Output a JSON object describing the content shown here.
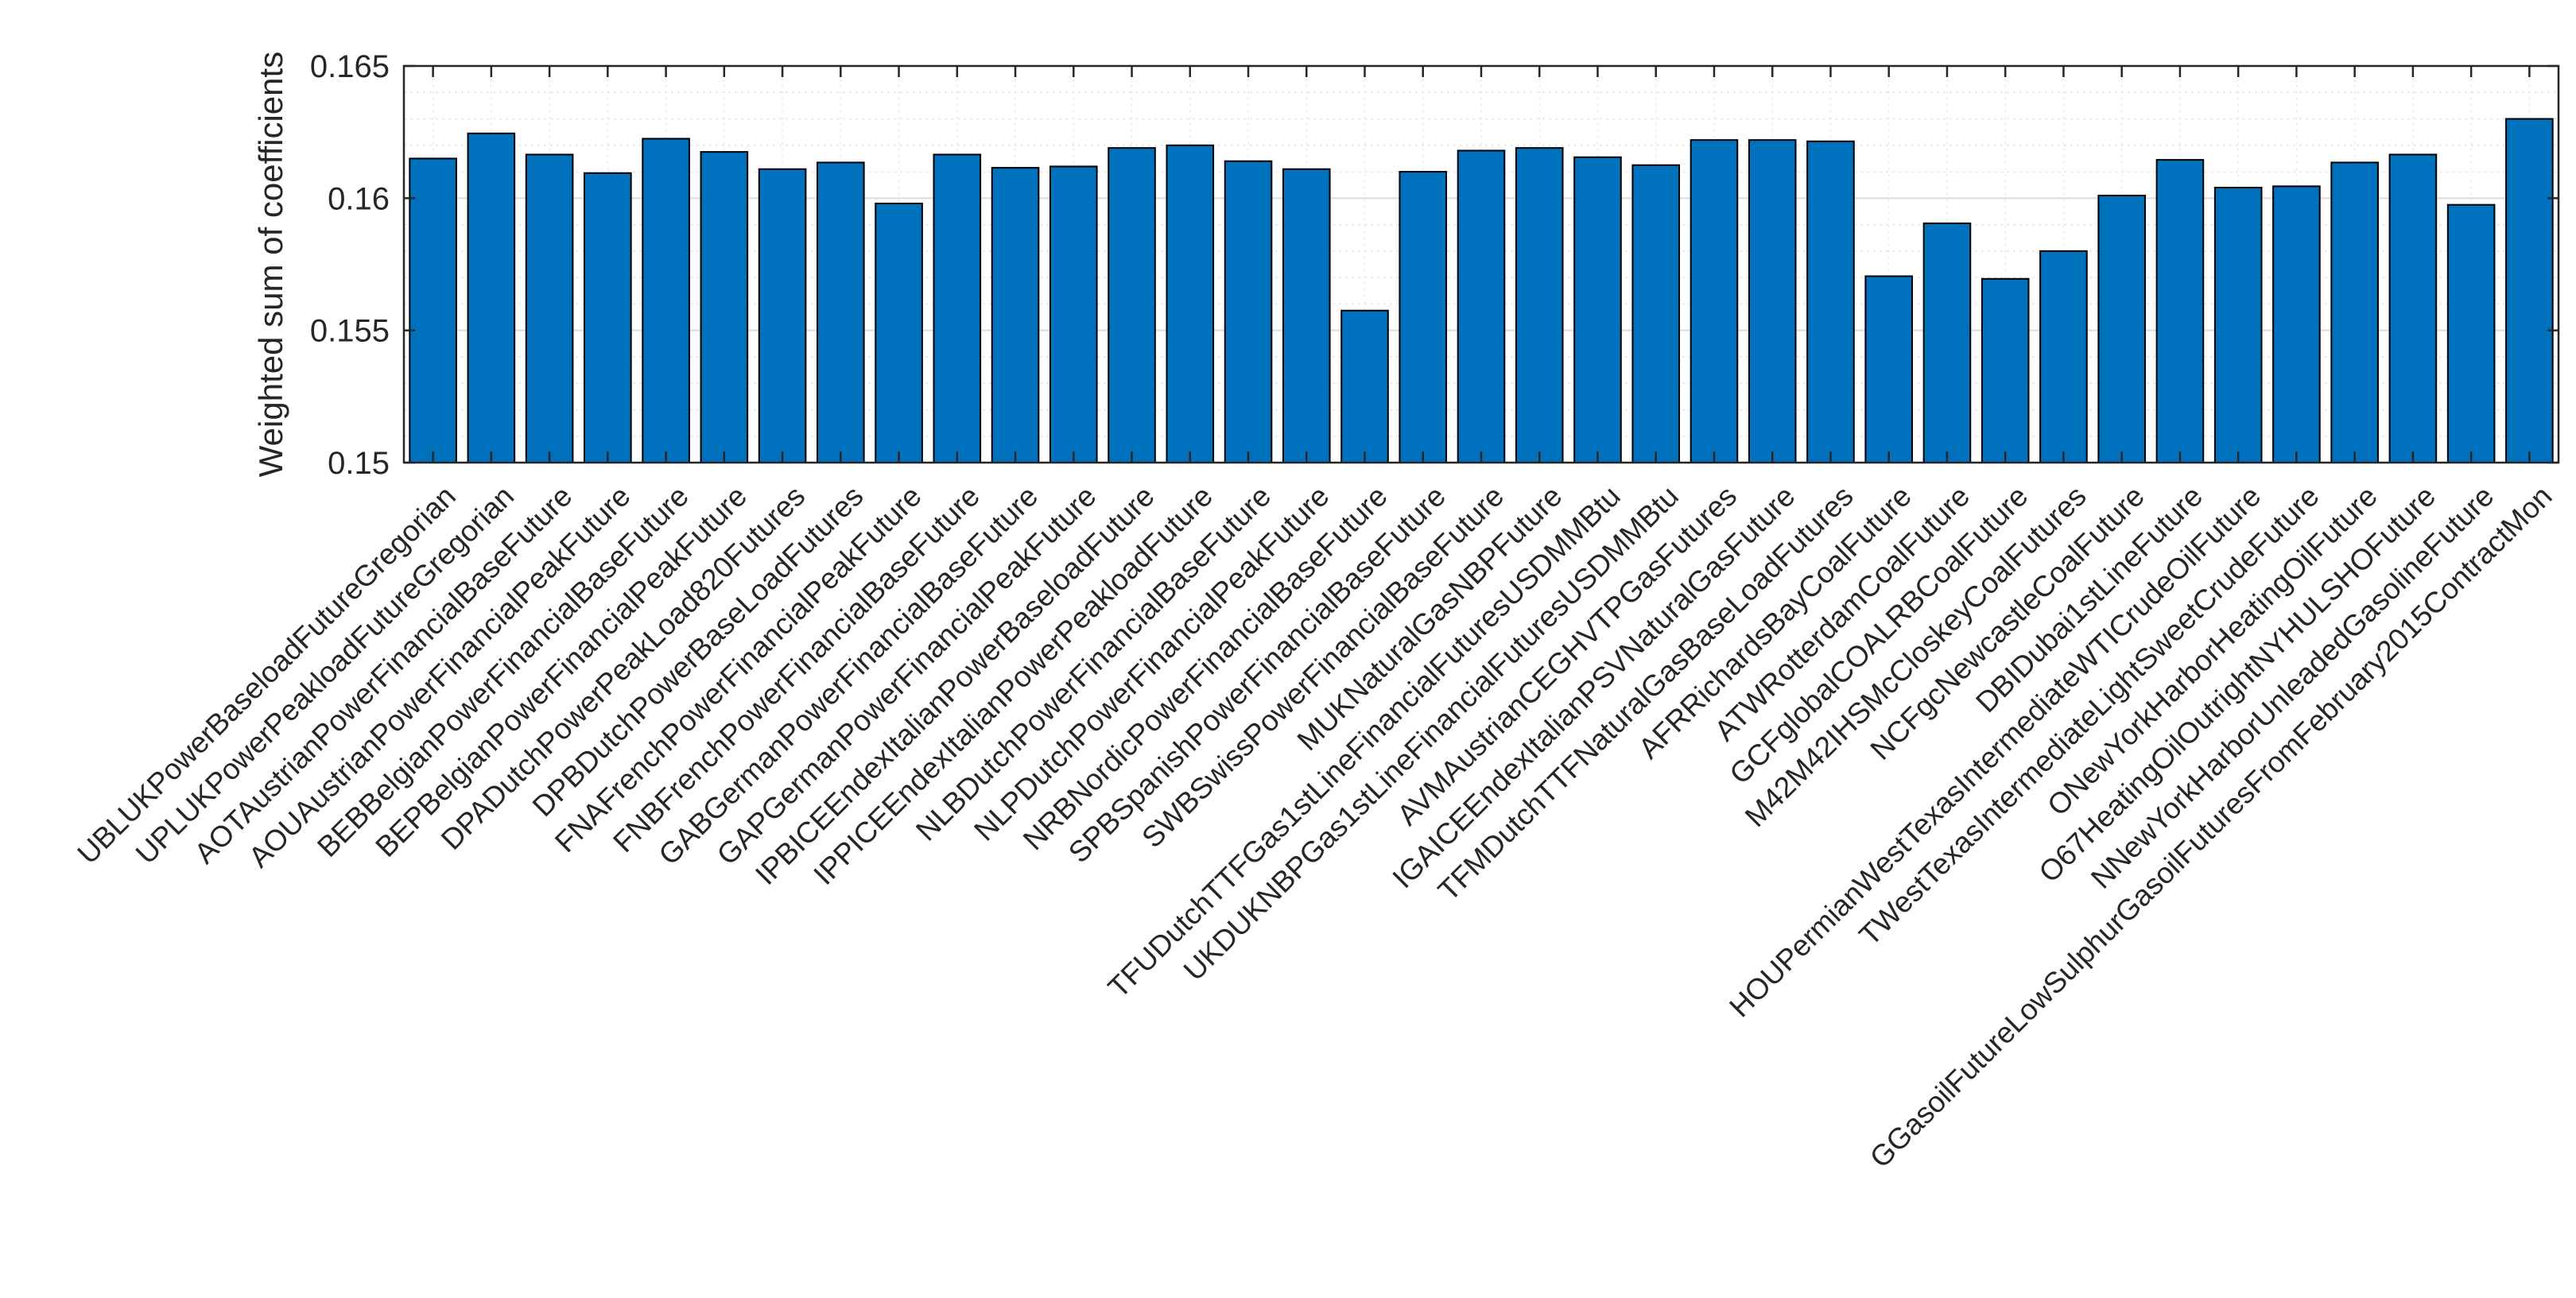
{
  "chart_data": {
    "type": "bar",
    "title": "",
    "xlabel": "",
    "ylabel": "Weighted sum of coefficients",
    "ylim": [
      0.15,
      0.165
    ],
    "yticks": [
      0.15,
      0.155,
      0.16,
      0.165
    ],
    "ytick_labels": [
      "0.15",
      "0.155",
      "0.16",
      "0.165"
    ],
    "grid": true,
    "bar_color": "#0072BD",
    "categories": [
      "UBLUKPowerBaseloadFutureGregorian",
      "UPLUKPowerPeakloadFutureGregorian",
      "AOTAustrianPowerFinancialBaseFuture",
      "AOUAustrianPowerFinancialPeakFuture",
      "BEBBelgianPowerFinancialBaseFuture",
      "BEPBelgianPowerFinancialPeakFuture",
      "DPADutchPowerPeakLoad820Futures",
      "DPBDutchPowerBaseLoadFutures",
      "FNAFrenchPowerFinancialPeakFuture",
      "FNBFrenchPowerFinancialBaseFuture",
      "GABGermanPowerFinancialBaseFuture",
      "GAPGermanPowerFinancialPeakFuture",
      "IPBICEEndexItalianPowerBaseloadFuture",
      "IPPICEEndexItalianPowerPeakloadFuture",
      "NLBDutchPowerFinancialBaseFuture",
      "NLPDutchPowerFinancialPeakFuture",
      "NRBNordicPowerFinancialBaseFuture",
      "SPBSpanishPowerFinancialBaseFuture",
      "SWBSwissPowerFinancialBaseFuture",
      "MUKNaturalGasNBPFuture",
      "TFUDutchTTFGas1stLineFinancialFuturesUSDMMBtu",
      "UKDUKNBPGas1stLineFinancialFuturesUSDMMBtu",
      "AVMAustrianCEGHVTPGasFutures",
      "IGAICEEndexItalianPSVNaturalGasFuture",
      "TFMDutchTTFNaturalGasBaseLoadFutures",
      "AFRRichardsBayCoalFuture",
      "ATWRotterdamCoalFuture",
      "GCFglobalCOALRBCoalFuture",
      "M42M42IHSMcCloskeyCoalFutures",
      "NCFgcNewcastleCoalFuture",
      "DBIDubai1stLineFuture",
      "HOUPermianWestTexasIntermediateWTICrudeOilFuture",
      "TWestTexasIntermediateLightSweetCrudeFuture",
      "ONewYorkHarborHeatingOilFuture",
      "O67HeatingOilOutrightNYHULSHOFuture",
      "NNewYorkHarborUnleadedGasolineFuture",
      "GGasoilFutureLowSulphurGasoilFuturesFromFebruary2015ContractMon"
    ],
    "values": [
      0.1615,
      0.16245,
      0.16165,
      0.16095,
      0.16225,
      0.16175,
      0.1611,
      0.16135,
      0.1598,
      0.16165,
      0.16115,
      0.1612,
      0.1619,
      0.162,
      0.1614,
      0.1611,
      0.15575,
      0.161,
      0.1618,
      0.1619,
      0.16155,
      0.16125,
      0.1622,
      0.1622,
      0.16215,
      0.15705,
      0.15905,
      0.15695,
      0.158,
      0.1601,
      0.16145,
      0.1604,
      0.16045,
      0.16135,
      0.16165,
      0.15975,
      0.163
    ]
  }
}
